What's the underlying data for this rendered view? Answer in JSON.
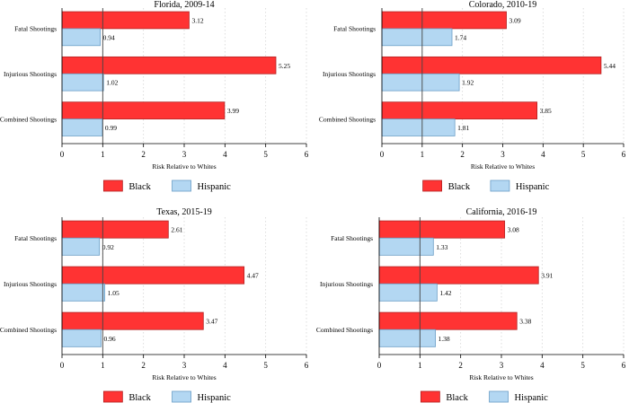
{
  "colors": {
    "black_series": "#ff3333",
    "black_stroke": "#b22222",
    "hispanic_series": "#b3d7f2",
    "hispanic_stroke": "#6a9ec7"
  },
  "chart_data": [
    {
      "type": "bar",
      "orientation": "horizontal",
      "title": "Florida, 2009-14",
      "categories": [
        "Fatal Shootings",
        "Injurious Shootings",
        "Combined Shootings"
      ],
      "series": [
        {
          "name": "Black",
          "values": [
            3.12,
            5.25,
            3.99
          ]
        },
        {
          "name": "Hispanic",
          "values": [
            0.94,
            1.02,
            0.99
          ]
        }
      ],
      "xlabel": "Risk Relative to Whites",
      "xlim": [
        0,
        6
      ],
      "xticks": [
        "0",
        "1",
        "2",
        "3",
        "4",
        "5",
        "6"
      ],
      "reference_line": 1,
      "legend": "bottom"
    },
    {
      "type": "bar",
      "orientation": "horizontal",
      "title": "Colorado, 2010-19",
      "categories": [
        "Fatal Shootings",
        "Injurious Shootings",
        "Combined Shootings"
      ],
      "series": [
        {
          "name": "Black",
          "values": [
            3.09,
            5.44,
            3.85
          ]
        },
        {
          "name": "Hispanic",
          "values": [
            1.74,
            1.92,
            1.81
          ]
        }
      ],
      "xlabel": "Risk Relative to Whites",
      "xlim": [
        0,
        6
      ],
      "xticks": [
        "0",
        "1",
        "2",
        "3",
        "4",
        "5",
        "6"
      ],
      "reference_line": 1,
      "legend": "bottom"
    },
    {
      "type": "bar",
      "orientation": "horizontal",
      "title": "Texas, 2015-19",
      "categories": [
        "Fatal Shootings",
        "Injurious Shootings",
        "Combined Shootings"
      ],
      "series": [
        {
          "name": "Black",
          "values": [
            2.61,
            4.47,
            3.47
          ]
        },
        {
          "name": "Hispanic",
          "values": [
            0.92,
            1.05,
            0.96
          ]
        }
      ],
      "xlabel": "Risk Relative to Whites",
      "xlim": [
        0,
        6
      ],
      "xticks": [
        "0",
        "1",
        "2",
        "3",
        "4",
        "5",
        "6"
      ],
      "reference_line": 1,
      "legend": "bottom"
    },
    {
      "type": "bar",
      "orientation": "horizontal",
      "title": "California, 2016-19",
      "categories": [
        "Fatal Shootings",
        "Injurious Shootings",
        "Combined Shootings"
      ],
      "series": [
        {
          "name": "Black",
          "values": [
            3.08,
            3.91,
            3.38
          ]
        },
        {
          "name": "Hispanic",
          "values": [
            1.33,
            1.42,
            1.38
          ]
        }
      ],
      "xlabel": "Risk Relative to Whites",
      "xlim": [
        0,
        6
      ],
      "xticks": [
        "0",
        "1",
        "2",
        "3",
        "4",
        "5",
        "6"
      ],
      "reference_line": 1,
      "legend": "bottom"
    }
  ]
}
